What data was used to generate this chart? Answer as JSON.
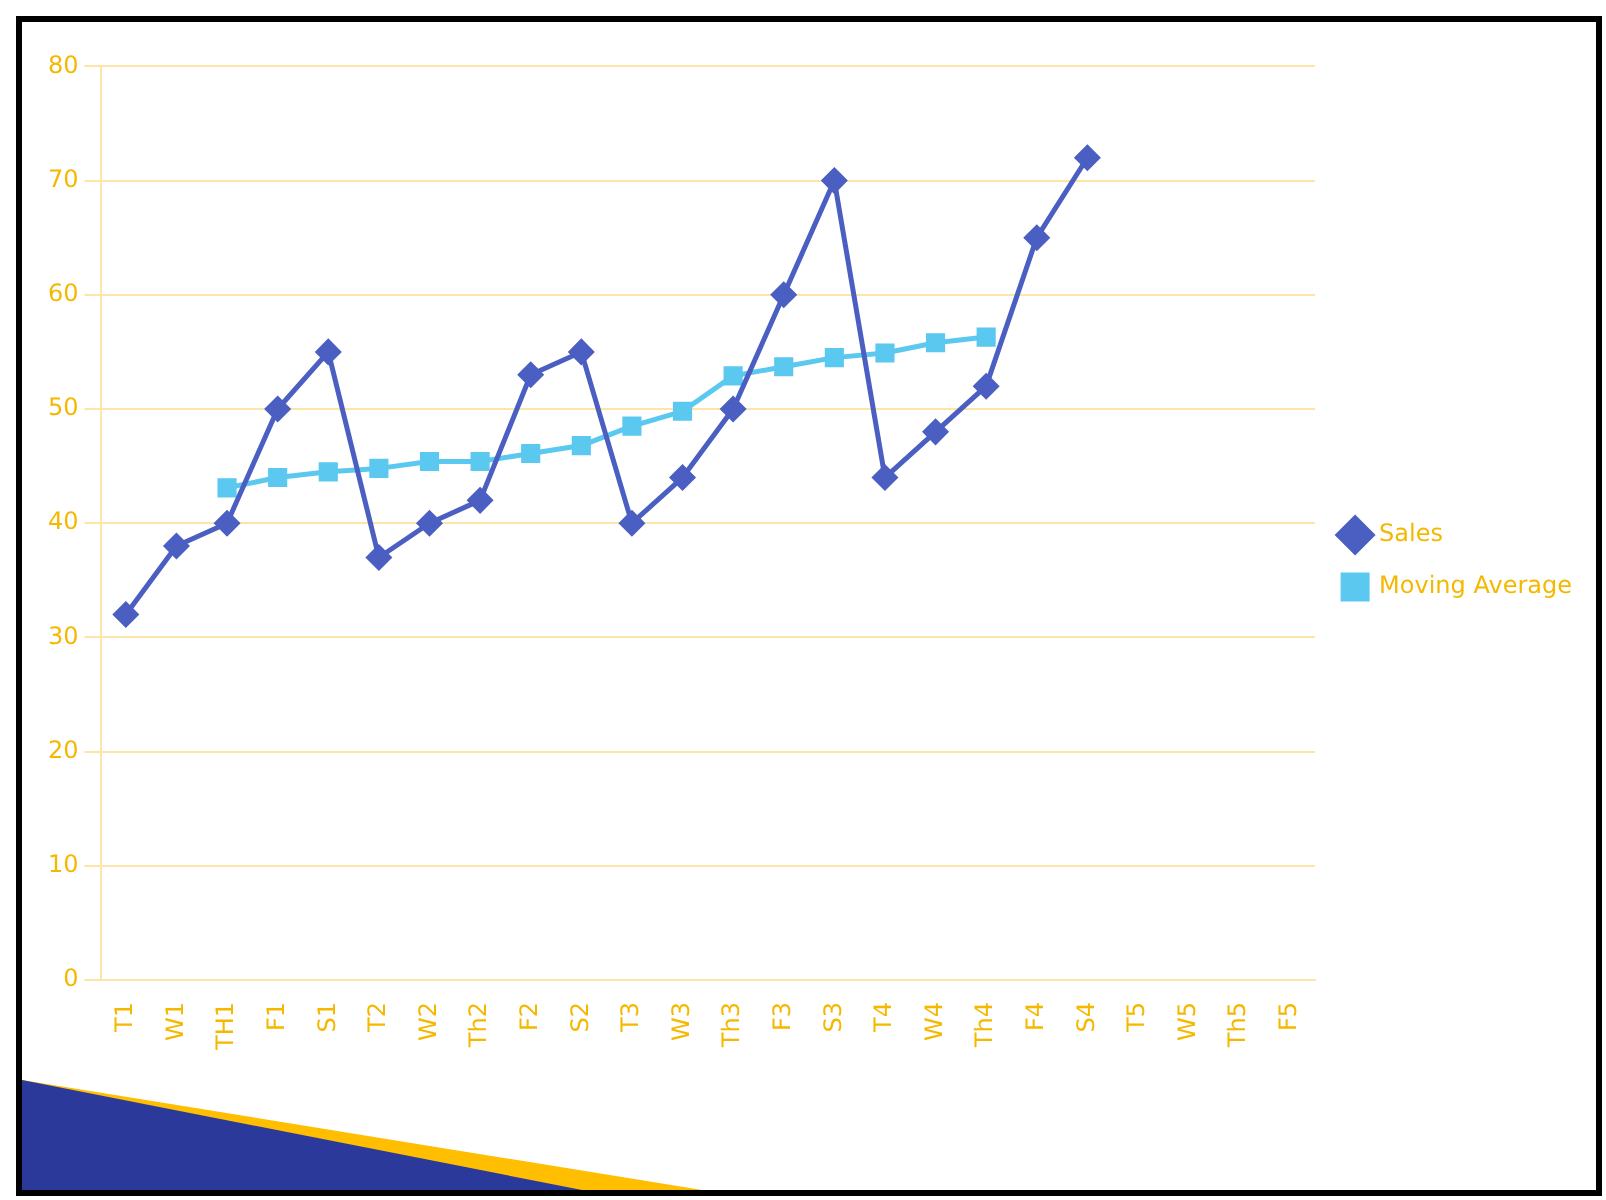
{
  "chart_data": {
    "type": "line",
    "categories": [
      "T1",
      "W1",
      "TH1",
      "F1",
      "S1",
      "T2",
      "W2",
      "Th2",
      "F2",
      "S2",
      "T3",
      "W3",
      "Th3",
      "F3",
      "S3",
      "T4",
      "W4",
      "Th4",
      "F4",
      "S4",
      "T5",
      "W5",
      "Th5",
      "F5"
    ],
    "series": [
      {
        "name": "Sales",
        "color": "#4a5fc1",
        "marker": "diamond",
        "values": [
          32,
          38,
          40,
          50,
          55,
          37,
          40,
          42,
          53,
          55,
          40,
          44,
          50,
          60,
          70,
          44,
          48,
          52,
          65,
          72,
          null,
          null,
          null,
          null
        ]
      },
      {
        "name": "Moving Average",
        "color": "#5bc8f0",
        "marker": "square",
        "values": [
          null,
          null,
          43.1,
          44,
          44.5,
          44.8,
          45.4,
          45.4,
          46.1,
          46.8,
          48.5,
          49.8,
          52.9,
          53.7,
          54.5,
          54.9,
          55.8,
          56.3,
          null,
          null,
          null,
          null,
          null,
          null
        ]
      }
    ],
    "ylim": [
      0,
      80
    ],
    "yticks": [
      0,
      10,
      20,
      30,
      40,
      50,
      60,
      70,
      80
    ],
    "grid": "y",
    "legend": "right"
  }
}
